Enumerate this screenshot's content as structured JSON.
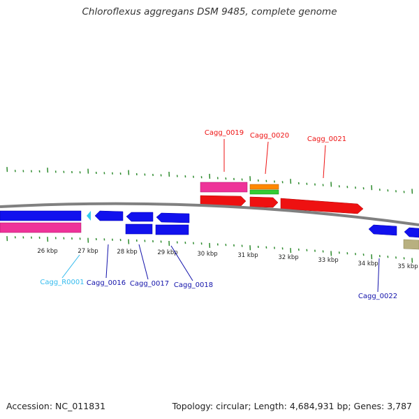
{
  "title": "Chloroflexus aggregans DSM 9485, complete genome",
  "footer": {
    "accession": "Accession: NC_011831",
    "topology": "Topology: circular; Length: 4,684,931 bp; Genes: 3,787"
  },
  "colors": {
    "backbone": "#808080",
    "tick": "#2e8b2e",
    "forward_cds": "#ee1111",
    "reverse_cds": "#1111ee",
    "rrna": "#ee3399",
    "trna": "#ff8800",
    "misc": "#33cc33",
    "trna_reverse": "#33ccee",
    "other_reverse": "#b8b080"
  },
  "kbp_labels": [
    "26 kbp",
    "27 kbp",
    "28 kbp",
    "29 kbp",
    "30 kbp",
    "31 kbp",
    "32 kbp",
    "33 kbp",
    "34 kbp",
    "35 kbp"
  ],
  "gene_labels": [
    {
      "id": "Cagg_0019",
      "strand": "forward",
      "color": "#ee1111"
    },
    {
      "id": "Cagg_0020",
      "strand": "forward",
      "color": "#ee1111"
    },
    {
      "id": "Cagg_0021",
      "strand": "forward",
      "color": "#ee1111"
    },
    {
      "id": "Cagg_R0001",
      "strand": "reverse",
      "color": "#33bbee"
    },
    {
      "id": "Cagg_0016",
      "strand": "reverse",
      "color": "#1111aa"
    },
    {
      "id": "Cagg_0017",
      "strand": "reverse",
      "color": "#1111aa"
    },
    {
      "id": "Cagg_0018",
      "strand": "reverse",
      "color": "#1111aa"
    },
    {
      "id": "Cagg_0022",
      "strand": "reverse",
      "color": "#1111aa"
    }
  ]
}
